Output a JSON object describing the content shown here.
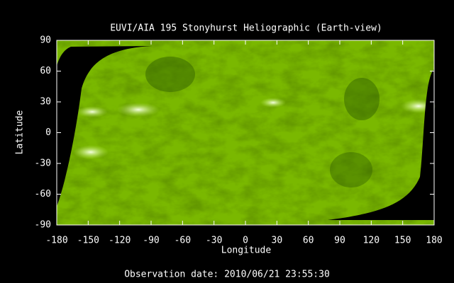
{
  "chart_data": {
    "type": "image",
    "title": "EUVI/AIA 195 Stonyhurst Heliographic (Earth-view)",
    "xlabel": "Longitude",
    "ylabel": "Latitude",
    "footer": "Observation date: 2010/06/21 23:55:30",
    "xlim": [
      -180,
      180
    ],
    "ylim": [
      -90,
      90
    ],
    "xticks": [
      -180,
      -150,
      -120,
      -90,
      -60,
      -30,
      0,
      30,
      60,
      90,
      120,
      150,
      180
    ],
    "yticks": [
      -90,
      -60,
      -30,
      0,
      30,
      60,
      90
    ],
    "color": "#7ab800"
  }
}
